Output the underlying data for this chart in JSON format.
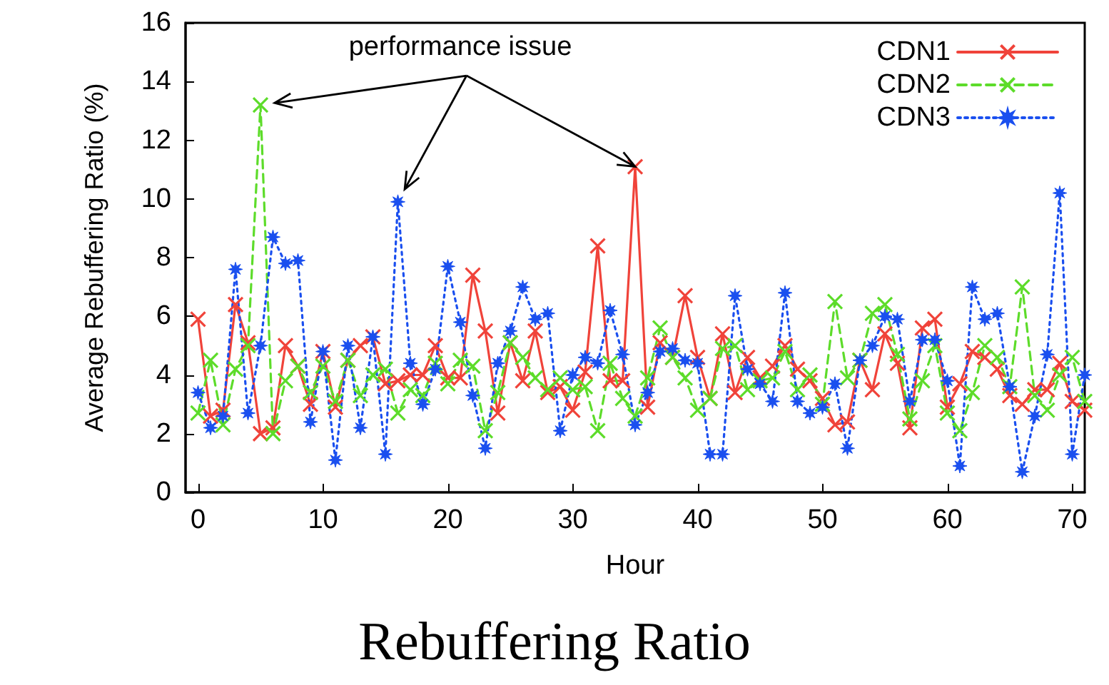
{
  "chart_data": {
    "type": "line",
    "title": "Rebuffering Ratio",
    "xlabel": "Hour",
    "ylabel": "Average Rebuffering Ratio (%)",
    "annotations": [
      {
        "text": "performance issue",
        "x": 35,
        "y": 11.1
      }
    ],
    "x": [
      0,
      1,
      2,
      3,
      4,
      5,
      6,
      7,
      8,
      9,
      10,
      11,
      12,
      13,
      14,
      15,
      16,
      17,
      18,
      19,
      20,
      21,
      22,
      23,
      24,
      25,
      26,
      27,
      28,
      29,
      30,
      31,
      32,
      33,
      34,
      35,
      36,
      37,
      38,
      39,
      40,
      41,
      42,
      43,
      44,
      45,
      46,
      47,
      48,
      49,
      50,
      51,
      52,
      53,
      54,
      55,
      56,
      57,
      58,
      59,
      60,
      61,
      62,
      63,
      64,
      65,
      66,
      67,
      68,
      69,
      70,
      71
    ],
    "series": [
      {
        "name": "CDN1",
        "color": "#f0433a",
        "marker": "cross",
        "line_style": "solid",
        "values": [
          5.9,
          2.6,
          2.8,
          6.4,
          5.1,
          2.0,
          2.2,
          5.0,
          4.3,
          3.0,
          4.8,
          2.9,
          4.5,
          5.0,
          5.3,
          3.7,
          3.8,
          4.0,
          4.0,
          5.0,
          3.9,
          3.9,
          7.4,
          5.5,
          2.7,
          5.1,
          3.8,
          5.5,
          3.4,
          3.6,
          2.8,
          4.1,
          8.4,
          3.8,
          3.8,
          11.1,
          2.9,
          5.1,
          4.6,
          6.7,
          4.6,
          3.2,
          5.4,
          3.4,
          4.6,
          3.9,
          4.3,
          5.0,
          4.2,
          3.8,
          3.2,
          2.3,
          2.4,
          4.5,
          3.5,
          5.4,
          4.4,
          2.2,
          5.6,
          5.9,
          2.9,
          3.7,
          4.8,
          4.6,
          4.2,
          3.3,
          3.0,
          3.5,
          3.5,
          4.4,
          3.1,
          2.8
        ]
      },
      {
        "name": "CDN2",
        "color": "#5ddc2a",
        "marker": "cross",
        "line_style": "dashed",
        "values": [
          2.7,
          4.5,
          2.3,
          4.2,
          5.0,
          13.2,
          2.0,
          3.8,
          4.3,
          3.4,
          4.3,
          3.1,
          4.5,
          3.3,
          4.0,
          4.2,
          2.7,
          3.5,
          3.3,
          4.4,
          3.7,
          4.5,
          4.3,
          2.1,
          3.4,
          5.1,
          4.6,
          3.9,
          3.5,
          3.9,
          3.5,
          3.6,
          2.1,
          4.4,
          3.2,
          2.6,
          3.9,
          5.6,
          4.6,
          3.9,
          2.8,
          3.2,
          4.9,
          5.0,
          3.5,
          3.8,
          3.9,
          4.8,
          3.5,
          4.0,
          3.0,
          6.5,
          3.9,
          4.5,
          6.1,
          6.4,
          4.7,
          2.5,
          3.8,
          5.0,
          2.7,
          2.1,
          3.4,
          5.0,
          4.6,
          3.6,
          7.0,
          3.3,
          2.8,
          4.0,
          4.6,
          3.1
        ]
      },
      {
        "name": "CDN3",
        "color": "#1a4fef",
        "marker": "star",
        "line_style": "dotted",
        "values": [
          3.4,
          2.2,
          2.6,
          7.6,
          2.7,
          5.0,
          8.7,
          7.8,
          7.9,
          2.4,
          4.8,
          1.1,
          5.0,
          2.2,
          5.3,
          1.3,
          9.9,
          4.4,
          3.0,
          4.2,
          7.7,
          5.8,
          3.3,
          1.5,
          4.4,
          5.5,
          7.0,
          5.9,
          6.1,
          2.1,
          4.0,
          4.6,
          4.4,
          6.2,
          4.7,
          2.3,
          3.4,
          4.8,
          4.9,
          4.5,
          4.4,
          1.3,
          1.3,
          6.7,
          4.2,
          3.7,
          3.1,
          6.8,
          3.1,
          2.7,
          2.9,
          3.7,
          1.5,
          4.5,
          5.0,
          6.0,
          5.9,
          3.1,
          5.2,
          5.2,
          3.8,
          0.9,
          7.0,
          5.9,
          6.1,
          3.6,
          0.7,
          2.6,
          4.7,
          10.2,
          1.3,
          4.0
        ]
      }
    ],
    "xlim": [
      -1,
      71
    ],
    "xticks": [
      0,
      10,
      20,
      30,
      40,
      50,
      60,
      70
    ],
    "ylim": [
      0,
      16
    ],
    "yticks": [
      0,
      2,
      4,
      6,
      8,
      10,
      12,
      14,
      16
    ],
    "grid": false,
    "legend": "top right"
  }
}
